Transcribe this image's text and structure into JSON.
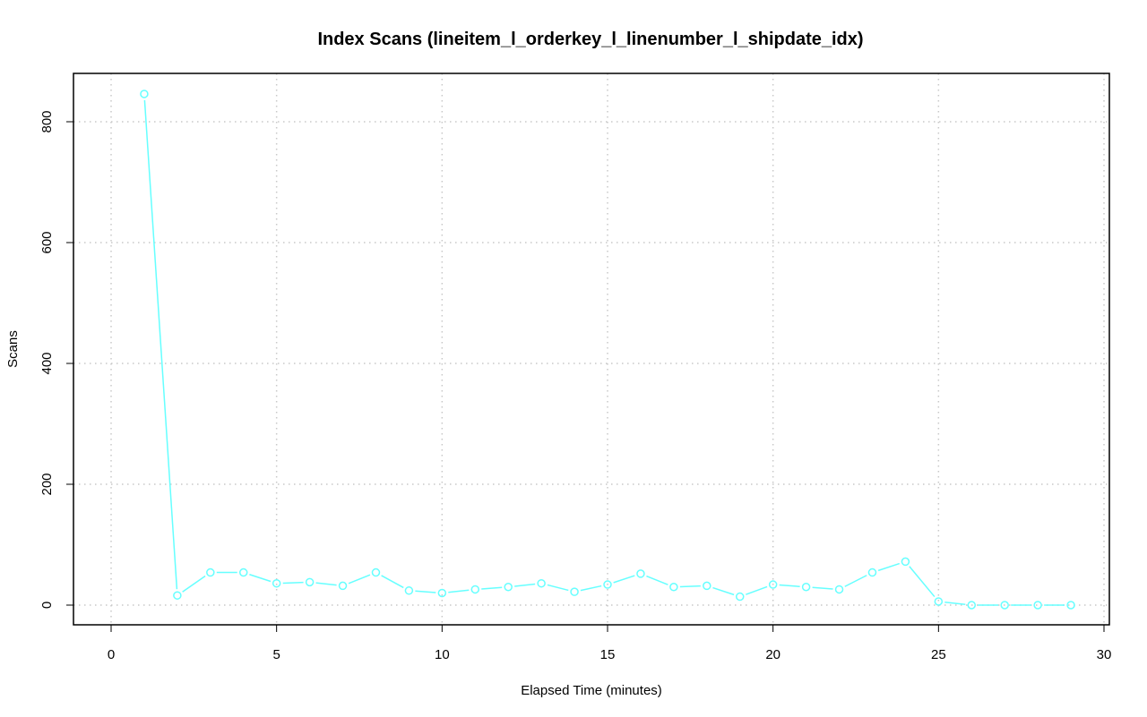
{
  "chart_data": {
    "type": "line",
    "title": "Index Scans (lineitem_l_orderkey_l_linenumber_l_shipdate_idx)",
    "xlabel": "Elapsed Time (minutes)",
    "ylabel": "Scans",
    "xlim": [
      0,
      30
    ],
    "ylim": [
      0,
      850
    ],
    "x_ticks": [
      0,
      5,
      10,
      15,
      20,
      25,
      30
    ],
    "y_ticks": [
      0,
      200,
      400,
      600,
      800
    ],
    "grid": true,
    "series": [
      {
        "color": "#66ffff",
        "marker": "open-circle",
        "x": [
          1,
          2,
          3,
          4,
          5,
          6,
          7,
          8,
          9,
          10,
          11,
          12,
          13,
          14,
          15,
          16,
          17,
          18,
          19,
          20,
          21,
          22,
          23,
          24,
          25,
          26,
          27,
          28,
          29
        ],
        "values": [
          846,
          16,
          54,
          54,
          36,
          38,
          32,
          54,
          24,
          20,
          26,
          30,
          36,
          22,
          34,
          52,
          30,
          32,
          14,
          34,
          30,
          26,
          54,
          72,
          6,
          0,
          0,
          0,
          0
        ]
      }
    ]
  }
}
